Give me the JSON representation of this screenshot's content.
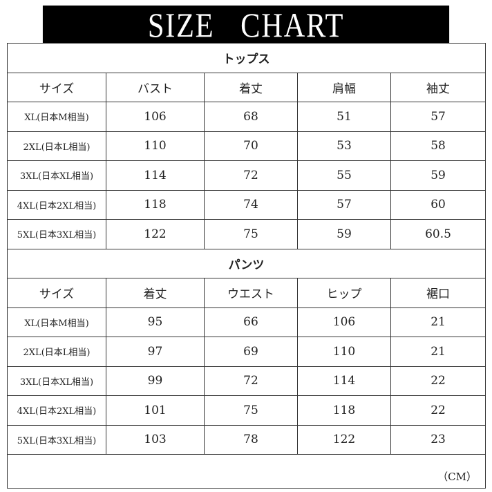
{
  "title": "SIZE CHART",
  "tops": {
    "section": "トップス",
    "headers": [
      "サイズ",
      "バスト",
      "着丈",
      "肩幅",
      "袖丈"
    ],
    "rows": [
      [
        "XL(日本M相当)",
        "106",
        "68",
        "51",
        "57"
      ],
      [
        "2XL(日本L相当)",
        "110",
        "70",
        "53",
        "58"
      ],
      [
        "3XL(日本XL相当)",
        "114",
        "72",
        "55",
        "59"
      ],
      [
        "4XL(日本2XL相当)",
        "118",
        "74",
        "57",
        "60"
      ],
      [
        "5XL(日本3XL相当)",
        "122",
        "75",
        "59",
        "60.5"
      ]
    ]
  },
  "pants": {
    "section": "パンツ",
    "headers": [
      "サイズ",
      "着丈",
      "ウエスト",
      "ヒップ",
      "裾口"
    ],
    "rows": [
      [
        "XL(日本M相当)",
        "95",
        "66",
        "106",
        "21"
      ],
      [
        "2XL(日本L相当)",
        "97",
        "69",
        "110",
        "21"
      ],
      [
        "3XL(日本XL相当)",
        "99",
        "72",
        "114",
        "22"
      ],
      [
        "4XL(日本2XL相当)",
        "101",
        "75",
        "118",
        "22"
      ],
      [
        "5XL(日本3XL相当)",
        "103",
        "78",
        "122",
        "23"
      ]
    ]
  },
  "unit": "（CM）"
}
